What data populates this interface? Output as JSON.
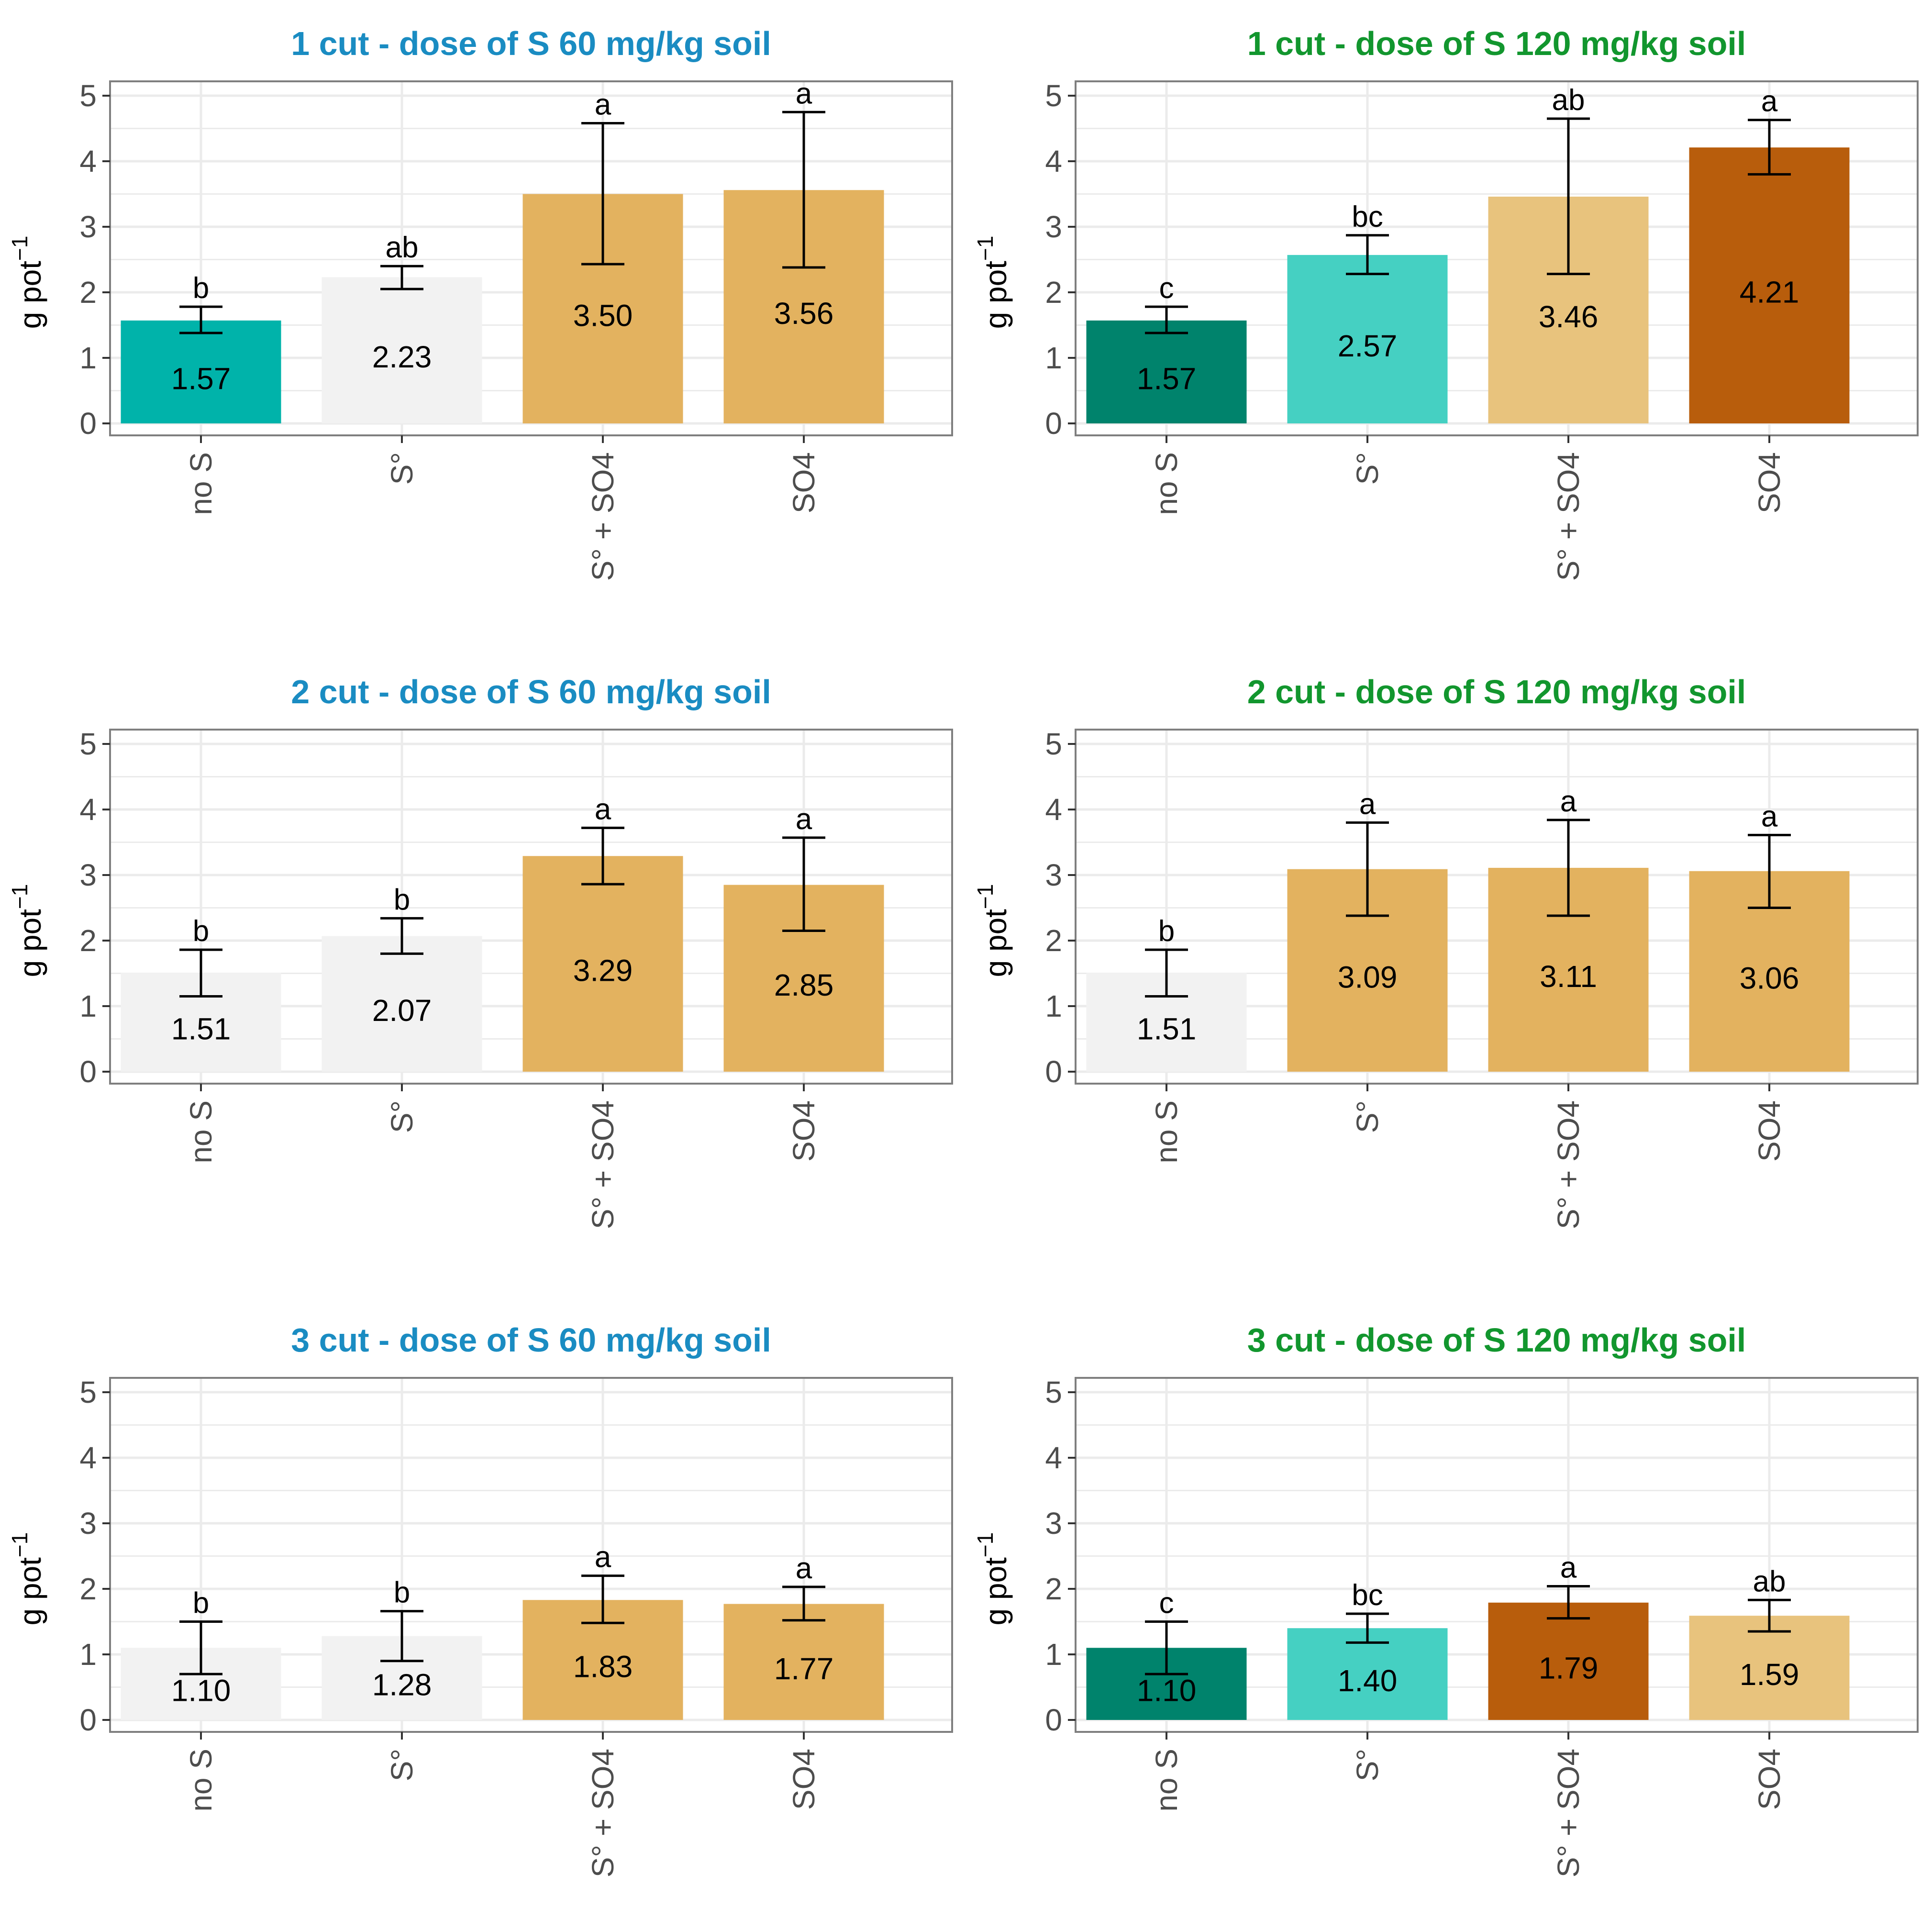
{
  "figure": {
    "ylabel_main": "g pot",
    "ylabel_sup": "−1"
  },
  "colors": {
    "title_60": "#1a8cc2",
    "title_120": "#12962e",
    "grey": "#f2f2f2",
    "tan": "#e3b25f",
    "light_tan": "#e8c37d",
    "turquoise": "#00b3aa",
    "light_turquoise": "#45d0c2",
    "dark_teal": "#00836c",
    "dark_orange": "#b85d0c",
    "grid": "#ebebeb",
    "border": "#7f7f7f"
  },
  "chart_data": [
    {
      "type": "bar",
      "title": "1 cut - dose of S 60 mg/kg soil",
      "title_color": "title_60",
      "ylabel": "g pot−1",
      "ylim": [
        0,
        5
      ],
      "yticks": [
        "0",
        "1",
        "2",
        "3",
        "4",
        "5"
      ],
      "categories": [
        "no S",
        "S°",
        "S° + SO4",
        "SO4"
      ],
      "values": [
        1.57,
        2.23,
        3.5,
        3.56
      ],
      "value_labels": [
        "1.57",
        "2.23",
        "3.50",
        "3.56"
      ],
      "error_low": [
        1.38,
        2.05,
        2.43,
        2.38
      ],
      "error_high": [
        1.78,
        2.4,
        4.58,
        4.75
      ],
      "letters": [
        "b",
        "ab",
        "a",
        "a"
      ],
      "bar_colors": [
        "turquoise",
        "grey",
        "tan",
        "tan"
      ]
    },
    {
      "type": "bar",
      "title": "1 cut - dose of S 120 mg/kg soil",
      "title_color": "title_120",
      "ylabel": "g pot−1",
      "ylim": [
        0,
        5
      ],
      "yticks": [
        "0",
        "1",
        "2",
        "3",
        "4",
        "5"
      ],
      "categories": [
        "no S",
        "S°",
        "S° + SO4",
        "SO4"
      ],
      "values": [
        1.57,
        2.57,
        3.46,
        4.21
      ],
      "value_labels": [
        "1.57",
        "2.57",
        "3.46",
        "4.21"
      ],
      "error_low": [
        1.38,
        2.28,
        2.28,
        3.8
      ],
      "error_high": [
        1.78,
        2.87,
        4.65,
        4.63
      ],
      "letters": [
        "c",
        "bc",
        "ab",
        "a"
      ],
      "bar_colors": [
        "dark_teal",
        "light_turquoise",
        "light_tan",
        "dark_orange"
      ]
    },
    {
      "type": "bar",
      "title": "2 cut - dose of S 60 mg/kg soil",
      "title_color": "title_60",
      "ylabel": "g pot−1",
      "ylim": [
        0,
        5
      ],
      "yticks": [
        "0",
        "1",
        "2",
        "3",
        "4",
        "5"
      ],
      "categories": [
        "no S",
        "S°",
        "S° + SO4",
        "SO4"
      ],
      "values": [
        1.51,
        2.07,
        3.29,
        2.85
      ],
      "value_labels": [
        "1.51",
        "2.07",
        "3.29",
        "2.85"
      ],
      "error_low": [
        1.15,
        1.8,
        2.86,
        2.15
      ],
      "error_high": [
        1.86,
        2.34,
        3.72,
        3.57
      ],
      "letters": [
        "b",
        "b",
        "a",
        "a"
      ],
      "bar_colors": [
        "grey",
        "grey",
        "tan",
        "tan"
      ]
    },
    {
      "type": "bar",
      "title": "2 cut - dose of S 120 mg/kg soil",
      "title_color": "title_120",
      "ylabel": "g pot−1",
      "ylim": [
        0,
        5
      ],
      "yticks": [
        "0",
        "1",
        "2",
        "3",
        "4",
        "5"
      ],
      "categories": [
        "no S",
        "S°",
        "S° + SO4",
        "SO4"
      ],
      "values": [
        1.51,
        3.09,
        3.11,
        3.06
      ],
      "value_labels": [
        "1.51",
        "3.09",
        "3.11",
        "3.06"
      ],
      "error_low": [
        1.15,
        2.38,
        2.38,
        2.5
      ],
      "error_high": [
        1.86,
        3.8,
        3.84,
        3.61
      ],
      "letters": [
        "b",
        "a",
        "a",
        "a"
      ],
      "bar_colors": [
        "grey",
        "tan",
        "tan",
        "tan"
      ]
    },
    {
      "type": "bar",
      "title": "3 cut - dose of S 60 mg/kg soil",
      "title_color": "title_60",
      "ylabel": "g pot−1",
      "ylim": [
        0,
        5
      ],
      "yticks": [
        "0",
        "1",
        "2",
        "3",
        "4",
        "5"
      ],
      "categories": [
        "no S",
        "S°",
        "S° + SO4",
        "SO4"
      ],
      "values": [
        1.1,
        1.28,
        1.83,
        1.77
      ],
      "value_labels": [
        "1.10",
        "1.28",
        "1.83",
        "1.77"
      ],
      "error_low": [
        0.7,
        0.9,
        1.48,
        1.52
      ],
      "error_high": [
        1.5,
        1.66,
        2.2,
        2.03
      ],
      "letters": [
        "b",
        "b",
        "a",
        "a"
      ],
      "bar_colors": [
        "grey",
        "grey",
        "tan",
        "tan"
      ]
    },
    {
      "type": "bar",
      "title": "3 cut - dose of S 120 mg/kg soil",
      "title_color": "title_120",
      "ylabel": "g pot−1",
      "ylim": [
        0,
        5
      ],
      "yticks": [
        "0",
        "1",
        "2",
        "3",
        "4",
        "5"
      ],
      "categories": [
        "no S",
        "S°",
        "S° + SO4",
        "SO4"
      ],
      "values": [
        1.1,
        1.4,
        1.79,
        1.59
      ],
      "value_labels": [
        "1.10",
        "1.40",
        "1.79",
        "1.59"
      ],
      "error_low": [
        0.7,
        1.18,
        1.55,
        1.35
      ],
      "error_high": [
        1.5,
        1.62,
        2.04,
        1.83
      ],
      "letters": [
        "c",
        "bc",
        "a",
        "ab"
      ],
      "bar_colors": [
        "dark_teal",
        "light_turquoise",
        "dark_orange",
        "light_tan"
      ]
    }
  ]
}
